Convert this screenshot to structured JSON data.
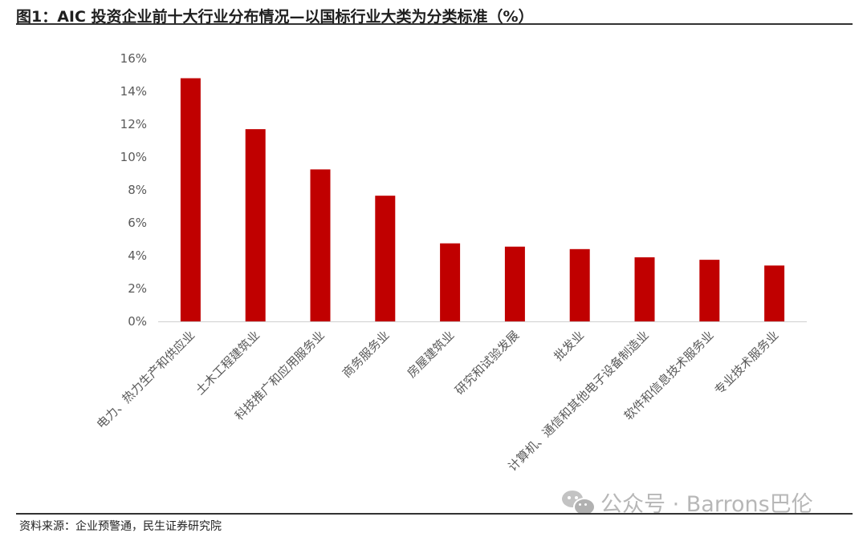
{
  "title": "图1：AIC 投资企业前十大行业分布情况—以国标行业大类为分类标准（%）",
  "source": "资料来源：企业预警通，民生证券研究院",
  "watermark": {
    "text": "公众号 · Barrons巴伦",
    "icon": "wechat-icon"
  },
  "colors": {
    "bar": "#C00000",
    "axis": "#d0d0d0",
    "text": "#595959"
  },
  "chart_data": {
    "type": "bar",
    "categories": [
      "电力、热力生产和供应业",
      "土木工程建筑业",
      "科技推广和应用服务业",
      "商务服务业",
      "房屋建筑业",
      "研究和试验发展",
      "批发业",
      "计算机、通信和其他电子设备制造业",
      "软件和信息技术服务业",
      "专业技术服务业"
    ],
    "values": [
      14.8,
      11.7,
      9.25,
      7.65,
      4.75,
      4.55,
      4.4,
      3.9,
      3.75,
      3.4
    ],
    "ylim": [
      0,
      16
    ],
    "yticks": [
      "0%",
      "2%",
      "4%",
      "6%",
      "8%",
      "10%",
      "12%",
      "14%",
      "16%"
    ],
    "unit": "%",
    "grid": false,
    "legend": "none"
  }
}
